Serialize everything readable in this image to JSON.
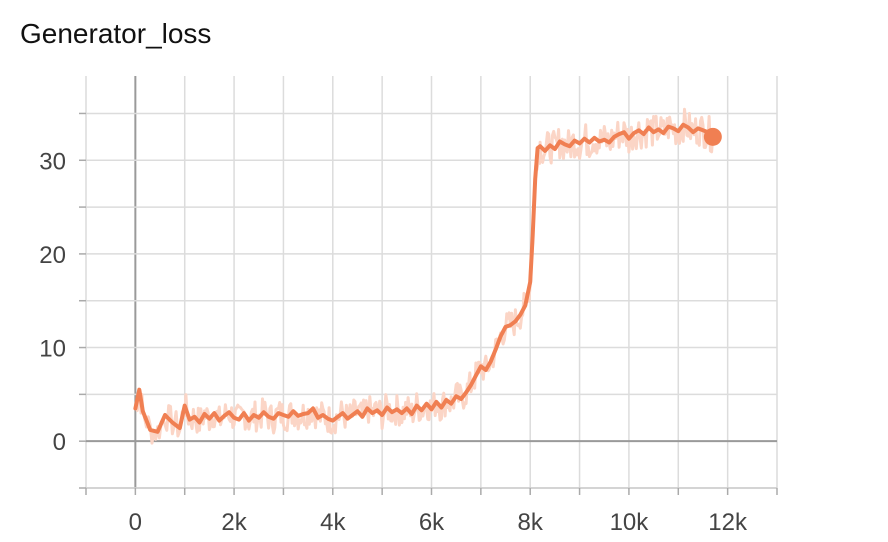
{
  "chart_data": {
    "type": "line",
    "title": "Generator_loss",
    "xlabel": "",
    "ylabel": "",
    "xlim": [
      -1000,
      13000
    ],
    "ylim": [
      -5,
      39
    ],
    "grid": true,
    "x_ticks": [
      0,
      2000,
      4000,
      6000,
      8000,
      10000,
      12000
    ],
    "x_tick_labels": [
      "0",
      "2k",
      "4k",
      "6k",
      "8k",
      "10k",
      "12k"
    ],
    "y_ticks": [
      0,
      10,
      20,
      30
    ],
    "y_tick_labels": [
      "0",
      "10",
      "20",
      "30"
    ],
    "series": [
      {
        "name": "",
        "color": "#f07f52",
        "raw_color": "#fbd5c6",
        "points": [
          [
            0,
            3.5
          ],
          [
            80,
            5.5
          ],
          [
            150,
            3.2
          ],
          [
            300,
            1.2
          ],
          [
            450,
            1.0
          ],
          [
            600,
            2.8
          ],
          [
            750,
            2.0
          ],
          [
            900,
            1.4
          ],
          [
            1000,
            3.8
          ],
          [
            1100,
            2.3
          ],
          [
            1200,
            2.6
          ],
          [
            1300,
            2.0
          ],
          [
            1400,
            2.9
          ],
          [
            1500,
            2.4
          ],
          [
            1600,
            3.0
          ],
          [
            1700,
            2.2
          ],
          [
            1800,
            2.7
          ],
          [
            1900,
            3.1
          ],
          [
            2000,
            2.5
          ],
          [
            2100,
            2.3
          ],
          [
            2200,
            3.0
          ],
          [
            2300,
            2.2
          ],
          [
            2400,
            2.8
          ],
          [
            2500,
            2.5
          ],
          [
            2600,
            3.1
          ],
          [
            2700,
            2.6
          ],
          [
            2800,
            2.4
          ],
          [
            2900,
            3.0
          ],
          [
            3000,
            2.8
          ],
          [
            3100,
            2.6
          ],
          [
            3200,
            3.2
          ],
          [
            3300,
            2.7
          ],
          [
            3400,
            2.9
          ],
          [
            3500,
            3.0
          ],
          [
            3600,
            3.5
          ],
          [
            3700,
            2.5
          ],
          [
            3800,
            2.8
          ],
          [
            3900,
            2.4
          ],
          [
            4000,
            2.2
          ],
          [
            4100,
            2.6
          ],
          [
            4200,
            3.0
          ],
          [
            4300,
            2.4
          ],
          [
            4400,
            2.8
          ],
          [
            4500,
            3.2
          ],
          [
            4600,
            2.6
          ],
          [
            4700,
            3.5
          ],
          [
            4800,
            3.0
          ],
          [
            4900,
            3.3
          ],
          [
            5000,
            2.8
          ],
          [
            5100,
            3.6
          ],
          [
            5200,
            3.1
          ],
          [
            5300,
            3.4
          ],
          [
            5400,
            3.0
          ],
          [
            5500,
            3.5
          ],
          [
            5600,
            2.9
          ],
          [
            5700,
            3.8
          ],
          [
            5800,
            3.3
          ],
          [
            5900,
            4.0
          ],
          [
            6000,
            3.4
          ],
          [
            6100,
            4.2
          ],
          [
            6200,
            3.6
          ],
          [
            6300,
            4.4
          ],
          [
            6400,
            4.0
          ],
          [
            6500,
            4.8
          ],
          [
            6600,
            4.5
          ],
          [
            6700,
            5.2
          ],
          [
            6800,
            6.0
          ],
          [
            6900,
            7.0
          ],
          [
            7000,
            8.0
          ],
          [
            7100,
            7.6
          ],
          [
            7200,
            8.5
          ],
          [
            7300,
            9.8
          ],
          [
            7400,
            11.2
          ],
          [
            7500,
            12.2
          ],
          [
            7600,
            12.4
          ],
          [
            7700,
            12.8
          ],
          [
            7800,
            13.5
          ],
          [
            7900,
            14.5
          ],
          [
            8000,
            17.0
          ],
          [
            8050,
            22.0
          ],
          [
            8100,
            28.0
          ],
          [
            8150,
            31.3
          ],
          [
            8200,
            31.5
          ],
          [
            8300,
            31.0
          ],
          [
            8400,
            31.6
          ],
          [
            8500,
            31.2
          ],
          [
            8600,
            32.0
          ],
          [
            8700,
            31.7
          ],
          [
            8800,
            31.5
          ],
          [
            8900,
            32.1
          ],
          [
            9000,
            31.8
          ],
          [
            9100,
            32.3
          ],
          [
            9200,
            31.9
          ],
          [
            9300,
            32.4
          ],
          [
            9400,
            32.0
          ],
          [
            9500,
            32.2
          ],
          [
            9600,
            31.9
          ],
          [
            9700,
            32.5
          ],
          [
            9800,
            32.8
          ],
          [
            9900,
            33.0
          ],
          [
            10000,
            32.3
          ],
          [
            10100,
            32.9
          ],
          [
            10200,
            33.2
          ],
          [
            10300,
            32.8
          ],
          [
            10400,
            33.5
          ],
          [
            10500,
            33.0
          ],
          [
            10600,
            33.3
          ],
          [
            10700,
            32.9
          ],
          [
            10800,
            33.6
          ],
          [
            10900,
            33.4
          ],
          [
            11000,
            33.1
          ],
          [
            11100,
            33.8
          ],
          [
            11200,
            33.5
          ],
          [
            11300,
            33.0
          ],
          [
            11400,
            33.4
          ],
          [
            11500,
            33.2
          ],
          [
            11600,
            33.0
          ],
          [
            11700,
            32.5
          ]
        ]
      }
    ]
  }
}
